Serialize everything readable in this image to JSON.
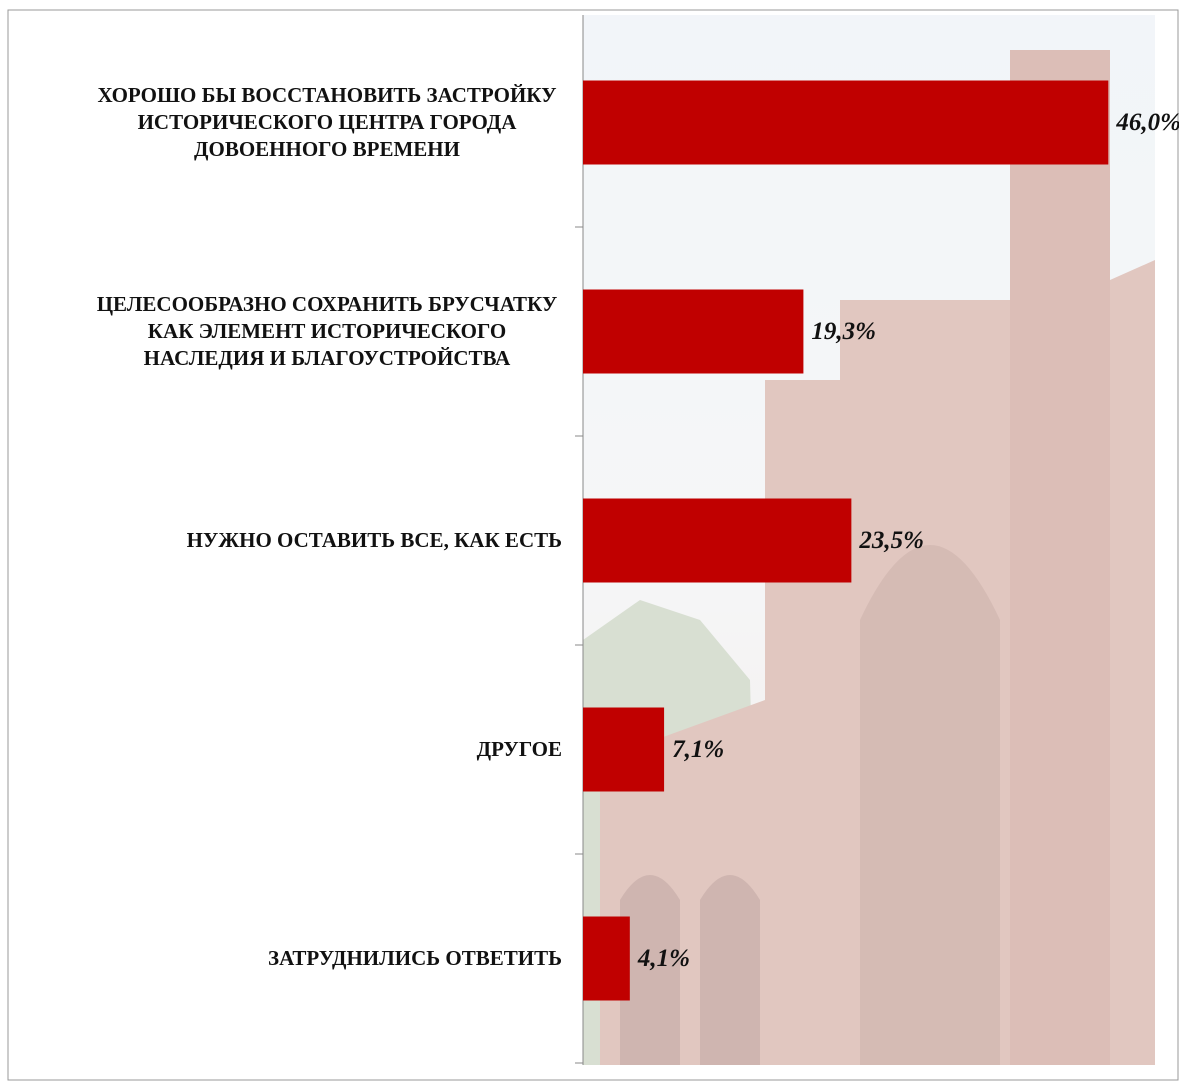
{
  "chart_data": {
    "type": "barh",
    "categories": [
      "ХОРОШО БЫ ВОССТАНОВИТЬ ЗАСТРОЙКУ ИСТОРИЧЕСКОГО ЦЕНТРА ГОРОДА ДОВОЕННОГО ВРЕМЕНИ",
      "ЦЕЛЕСООБРАЗНО СОХРАНИТЬ БРУСЧАТКУ КАК ЭЛЕМЕНТ ИСТОРИЧЕСКОГО НАСЛЕДИЯ И БЛАГОУСТРОЙСТВА",
      "НУЖНО ОСТАВИТЬ ВСЕ, КАК ЕСТЬ",
      "ДРУГОЕ",
      "ЗАТРУДНИЛИСЬ ОТВЕТИТЬ"
    ],
    "values": [
      46.0,
      19.3,
      23.5,
      7.1,
      4.1
    ],
    "value_labels": [
      "46,0%",
      "19,3%",
      "23,5%",
      "7,1%",
      "4,1%"
    ],
    "color": "#c00000",
    "xlim": [
      0,
      50
    ]
  }
}
